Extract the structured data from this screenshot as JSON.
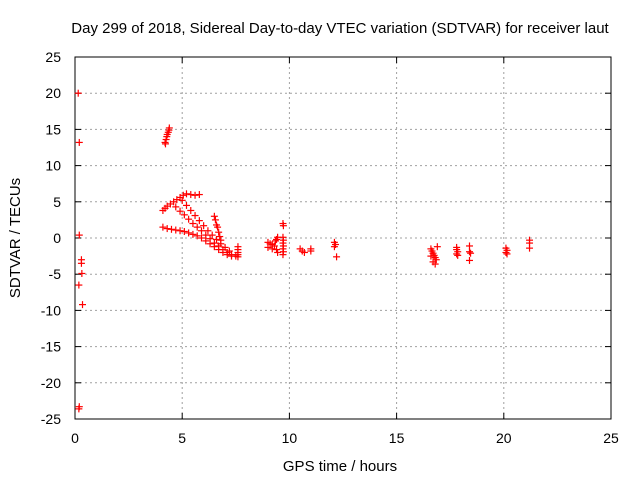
{
  "chart_data": {
    "type": "scatter",
    "title": "Day 299 of 2018, Sidereal Day-to-day VTEC variation (SDTVAR) for receiver laut",
    "xlabel": "GPS time / hours",
    "ylabel": "SDTVAR / TECUs",
    "xlim": [
      0,
      25
    ],
    "ylim": [
      -25,
      25
    ],
    "grid": true,
    "legend": "none",
    "marker": "+",
    "series_color": "#ff0000",
    "x_ticks": [
      0,
      5,
      10,
      15,
      20,
      25
    ],
    "y_ticks": [
      -25,
      -20,
      -15,
      -10,
      -5,
      0,
      5,
      10,
      15,
      20,
      25
    ],
    "series": [
      {
        "name": "laut",
        "points": [
          [
            0.15,
            20.0
          ],
          [
            0.2,
            13.2
          ],
          [
            0.2,
            0.4
          ],
          [
            0.18,
            -6.5
          ],
          [
            0.3,
            -3.0
          ],
          [
            0.3,
            -3.5
          ],
          [
            0.32,
            -4.9
          ],
          [
            0.35,
            -9.2
          ],
          [
            0.2,
            -23.3
          ],
          [
            0.18,
            -23.6
          ],
          [
            4.2,
            13.2
          ],
          [
            4.25,
            13.6
          ],
          [
            4.28,
            14.0
          ],
          [
            4.3,
            14.3
          ],
          [
            4.35,
            14.6
          ],
          [
            4.38,
            14.9
          ],
          [
            4.4,
            15.2
          ],
          [
            4.22,
            13.0
          ],
          [
            4.1,
            3.8
          ],
          [
            4.2,
            4.1
          ],
          [
            4.3,
            4.4
          ],
          [
            4.45,
            4.7
          ],
          [
            4.6,
            5.0
          ],
          [
            4.75,
            5.3
          ],
          [
            4.9,
            5.6
          ],
          [
            5.05,
            5.9
          ],
          [
            5.2,
            6.1
          ],
          [
            5.4,
            6.0
          ],
          [
            5.6,
            5.9
          ],
          [
            5.8,
            6.0
          ],
          [
            4.7,
            4.3
          ],
          [
            4.9,
            3.7
          ],
          [
            5.1,
            3.2
          ],
          [
            5.3,
            2.6
          ],
          [
            5.5,
            2.0
          ],
          [
            5.7,
            1.5
          ],
          [
            5.9,
            1.0
          ],
          [
            6.1,
            0.4
          ],
          [
            6.3,
            -0.1
          ],
          [
            6.5,
            -0.7
          ],
          [
            6.7,
            -1.1
          ],
          [
            6.9,
            -1.6
          ],
          [
            7.1,
            -2.0
          ],
          [
            7.3,
            -2.3
          ],
          [
            5.0,
            5.2
          ],
          [
            5.2,
            4.5
          ],
          [
            5.4,
            3.8
          ],
          [
            5.6,
            3.1
          ],
          [
            5.8,
            2.4
          ],
          [
            6.0,
            1.7
          ],
          [
            6.2,
            1.0
          ],
          [
            6.4,
            0.4
          ],
          [
            6.6,
            -0.2
          ],
          [
            6.8,
            -0.8
          ],
          [
            7.0,
            -1.3
          ],
          [
            7.2,
            -1.8
          ],
          [
            4.1,
            1.5
          ],
          [
            4.3,
            1.3
          ],
          [
            4.5,
            1.2
          ],
          [
            4.7,
            1.1
          ],
          [
            4.9,
            1.0
          ],
          [
            5.1,
            0.9
          ],
          [
            5.3,
            0.7
          ],
          [
            5.5,
            0.5
          ],
          [
            5.7,
            0.3
          ],
          [
            5.9,
            0.0
          ],
          [
            6.1,
            -0.4
          ],
          [
            6.3,
            -0.8
          ],
          [
            6.5,
            -1.2
          ],
          [
            6.7,
            -1.6
          ],
          [
            6.9,
            -2.0
          ],
          [
            7.1,
            -2.3
          ],
          [
            7.3,
            -2.5
          ],
          [
            7.5,
            -2.5
          ],
          [
            6.5,
            3.0
          ],
          [
            6.55,
            2.5
          ],
          [
            6.6,
            1.8
          ],
          [
            6.65,
            1.5
          ],
          [
            6.7,
            0.8
          ],
          [
            6.75,
            0.2
          ],
          [
            6.8,
            -0.3
          ],
          [
            7.6,
            -1.2
          ],
          [
            7.6,
            -1.6
          ],
          [
            7.6,
            -2.0
          ],
          [
            7.6,
            -2.3
          ],
          [
            7.6,
            -2.6
          ],
          [
            9.0,
            -0.6
          ],
          [
            9.1,
            -0.8
          ],
          [
            9.2,
            -0.9
          ],
          [
            9.3,
            -1.1
          ],
          [
            9.35,
            -0.4
          ],
          [
            9.4,
            -0.2
          ],
          [
            9.45,
            0.1
          ],
          [
            9.0,
            -1.3
          ],
          [
            9.2,
            -1.5
          ],
          [
            9.4,
            -1.6
          ],
          [
            9.45,
            -2.0
          ],
          [
            9.7,
            2.0
          ],
          [
            9.72,
            1.7
          ],
          [
            9.7,
            0.1
          ],
          [
            9.72,
            -0.3
          ],
          [
            9.7,
            -0.7
          ],
          [
            9.72,
            -1.1
          ],
          [
            9.7,
            -1.5
          ],
          [
            9.72,
            -1.9
          ],
          [
            9.7,
            -2.3
          ],
          [
            10.5,
            -1.5
          ],
          [
            10.6,
            -1.8
          ],
          [
            10.7,
            -2.0
          ],
          [
            11.0,
            -1.5
          ],
          [
            11.0,
            -1.8
          ],
          [
            12.1,
            -0.6
          ],
          [
            12.15,
            -0.9
          ],
          [
            12.1,
            -1.2
          ],
          [
            12.2,
            -2.6
          ],
          [
            16.6,
            -1.5
          ],
          [
            16.65,
            -1.8
          ],
          [
            16.7,
            -2.1
          ],
          [
            16.75,
            -2.4
          ],
          [
            16.8,
            -2.7
          ],
          [
            16.85,
            -3.0
          ],
          [
            16.7,
            -3.3
          ],
          [
            16.8,
            -3.6
          ],
          [
            16.9,
            -1.2
          ],
          [
            16.6,
            -2.5
          ],
          [
            17.8,
            -1.3
          ],
          [
            17.8,
            -1.6
          ],
          [
            17.85,
            -1.9
          ],
          [
            17.8,
            -2.2
          ],
          [
            17.85,
            -2.4
          ],
          [
            18.4,
            -1.1
          ],
          [
            18.4,
            -1.9
          ],
          [
            18.45,
            -2.1
          ],
          [
            18.4,
            -3.1
          ],
          [
            20.1,
            -1.4
          ],
          [
            20.15,
            -1.7
          ],
          [
            20.1,
            -2.0
          ],
          [
            20.15,
            -2.2
          ],
          [
            21.2,
            -0.3
          ],
          [
            21.2,
            -0.7
          ],
          [
            21.2,
            -1.4
          ]
        ]
      }
    ]
  }
}
